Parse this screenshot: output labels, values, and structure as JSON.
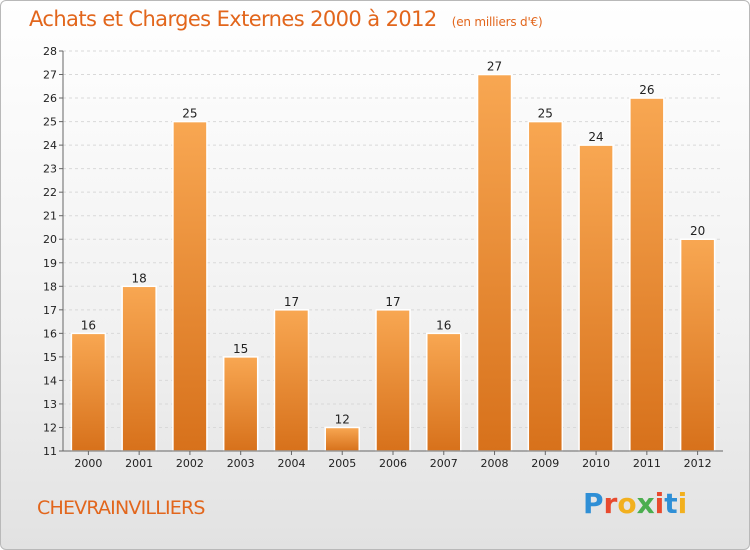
{
  "title": "Achats et Charges Externes 2000 à 2012",
  "unit": "(en milliers d'€)",
  "commune": "CHEVRAINVILLIERS",
  "brand": {
    "letters": [
      "P",
      "r",
      "o",
      "x",
      "i",
      "t",
      "i"
    ],
    "colors": [
      "#2f8fd6",
      "#e84a2e",
      "#f2b01e",
      "#4bae4f",
      "#e84a2e",
      "#2f8fd6",
      "#f2b01e"
    ]
  },
  "colors": {
    "title": "#e2661c",
    "bar_top": "#f8a752",
    "bar_bottom": "#d7711b",
    "axis": "#666666",
    "grid": "#d9d9d9"
  },
  "chart_data": {
    "type": "bar",
    "categories": [
      "2000",
      "2001",
      "2002",
      "2003",
      "2004",
      "2005",
      "2006",
      "2007",
      "2008",
      "2009",
      "2010",
      "2011",
      "2012"
    ],
    "values": [
      16,
      18,
      25,
      15,
      17,
      12,
      17,
      16,
      27,
      25,
      24,
      26,
      20
    ],
    "ylim": [
      11,
      28
    ],
    "yticks": [
      11,
      12,
      13,
      14,
      15,
      16,
      17,
      18,
      19,
      20,
      21,
      22,
      23,
      24,
      25,
      26,
      27,
      28
    ],
    "grid": true,
    "data_labels": true
  }
}
